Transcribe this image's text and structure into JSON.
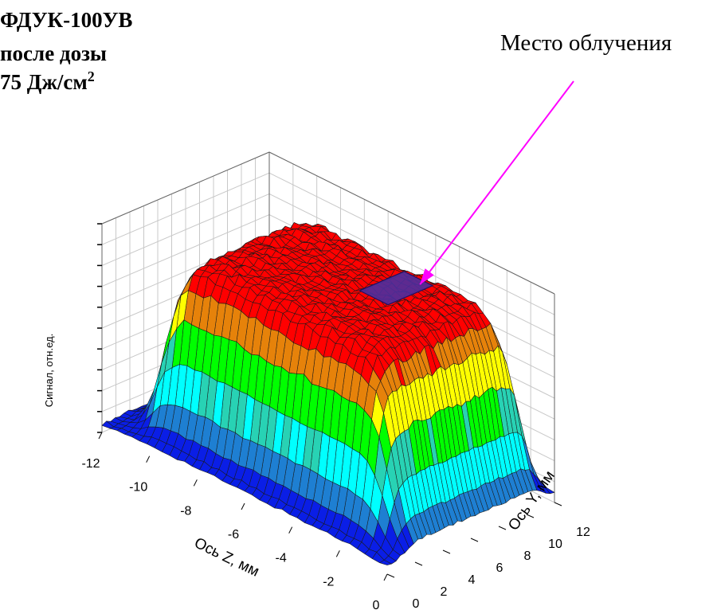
{
  "title": {
    "line1": "ФДУК-100УВ",
    "line2": "после дозы",
    "line3": "75 Дж/см",
    "line3_sup": "2"
  },
  "annotation": {
    "text": "Место облучения",
    "arrow_color": "#ff00ff",
    "marker_color": "#4b2fa0"
  },
  "chart_data": {
    "type": "surface3d",
    "title": "ФДУК-100УВ после дозы 75 Дж/см2",
    "z_axis": {
      "label": "Ось Z, мм",
      "range": [
        -12,
        0
      ],
      "ticks": [
        "-12",
        "-10",
        "-8",
        "-6",
        "-4",
        "-2",
        "0"
      ]
    },
    "y_axis": {
      "label": "Ось Y, мм",
      "range": [
        0,
        12
      ],
      "ticks": [
        "0",
        "2",
        "4",
        "6",
        "8",
        "10",
        "12"
      ]
    },
    "signal_axis": {
      "label": "Сигнал, отн.ед.",
      "range": [
        0,
        1
      ]
    },
    "plateau": {
      "z_range": [
        -10.5,
        -0.8
      ],
      "y_range": [
        1.3,
        11.3
      ],
      "level": 0.9,
      "base_level": 0.04
    },
    "irradiated_spot": {
      "z_range": [
        -4.8,
        -3.6
      ],
      "y_range": [
        6.2,
        9.4
      ],
      "label": "Место облучения"
    },
    "color_bands": [
      "#0a1ee6",
      "#1e7fd2",
      "#00ffff",
      "#28d2b4",
      "#00ff00",
      "#ffff00",
      "#e6820a",
      "#ff0000"
    ],
    "grid_lines": true
  }
}
